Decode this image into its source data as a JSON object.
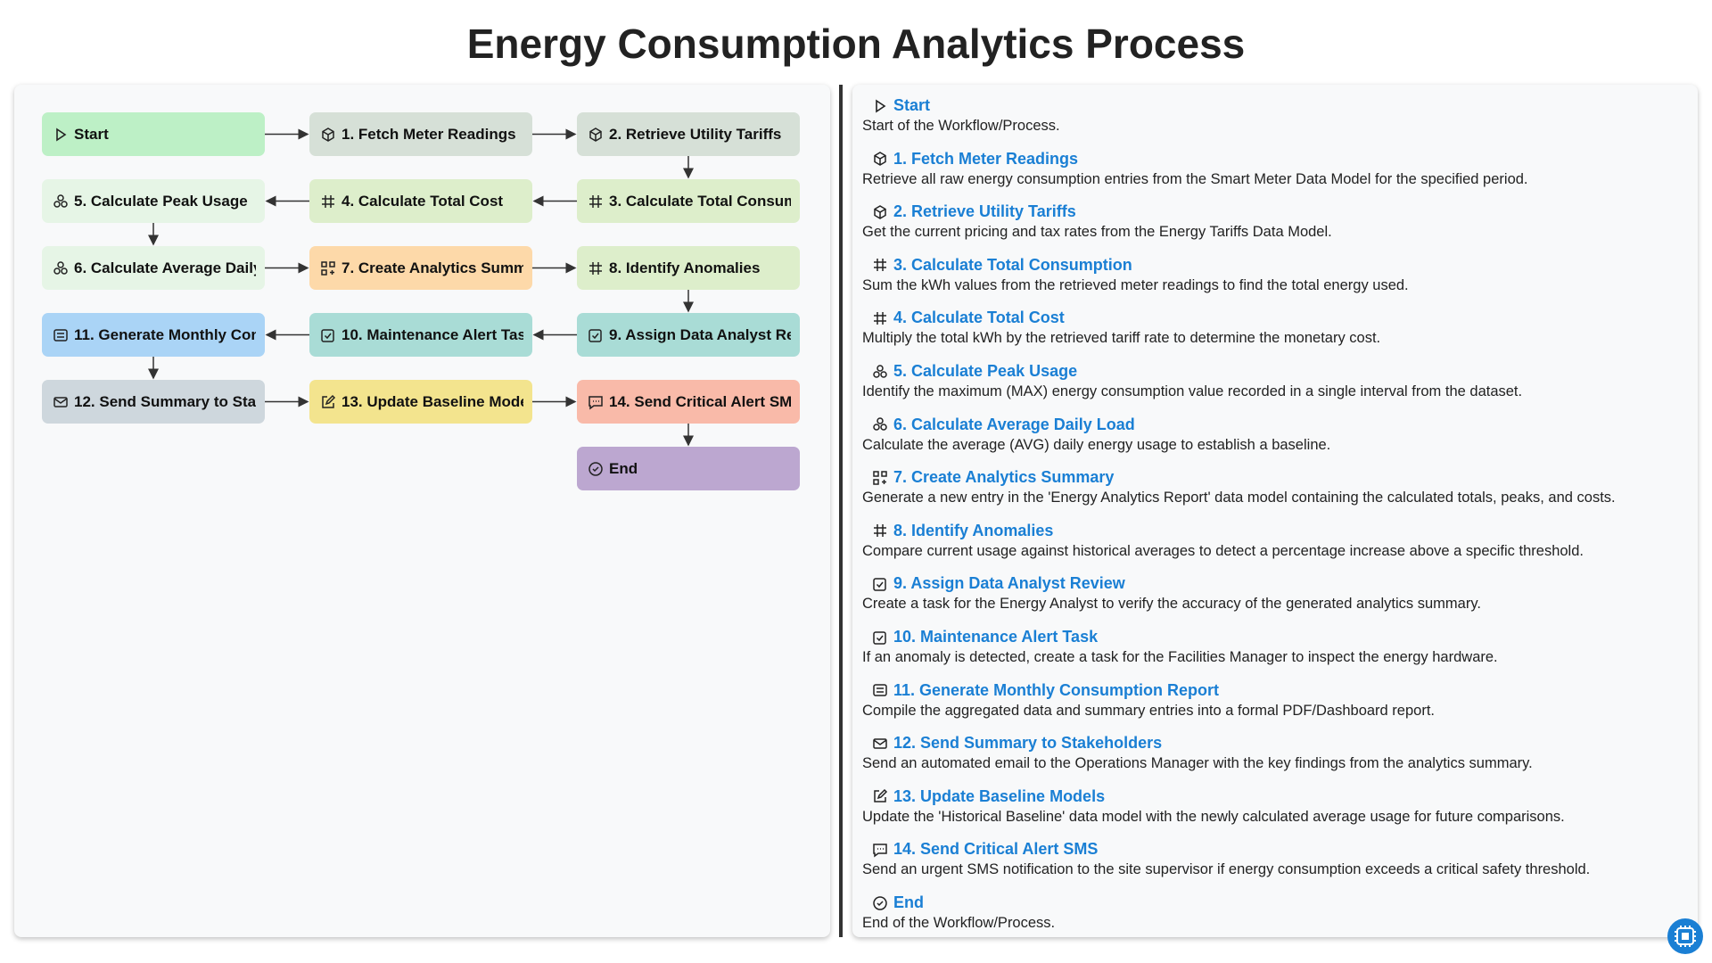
{
  "title": "Energy Consumption Analytics Process",
  "nodes": [
    {
      "label": "Start",
      "description": "Start of the Workflow/Process.",
      "color": "#bdf0c6"
    },
    {
      "label": "1. Fetch Meter Readings",
      "description": "Retrieve all raw energy consumption entries from the Smart Meter Data Model for the specified period.",
      "color": "#d6e0d7"
    },
    {
      "label": "2. Retrieve Utility Tariffs",
      "description": "Get the current pricing and tax rates from the Energy Tariffs Data Model.",
      "color": "#d6e0d7"
    },
    {
      "label": "3. Calculate Total Consumption",
      "description": "Sum the kWh values from the retrieved meter readings to find the total energy used.",
      "color": "#ddeecb"
    },
    {
      "label": "4. Calculate Total Cost",
      "description": "Multiply the total kWh by the retrieved tariff rate to determine the monetary cost.",
      "color": "#ddeecb"
    },
    {
      "label": "5. Calculate Peak Usage",
      "description": "Identify the maximum (MAX) energy consumption value recorded in a single interval from the dataset.",
      "color": "#e6f5e6"
    },
    {
      "label": "6. Calculate Average Daily Load",
      "description": "Calculate the average (AVG) daily energy usage to establish a baseline.",
      "color": "#e6f5e6"
    },
    {
      "label": "7. Create Analytics Summary",
      "description": "Generate a new entry in the 'Energy Analytics Report' data model containing the calculated totals, peaks, and costs.",
      "color": "#fdd9a9"
    },
    {
      "label": "8. Identify Anomalies",
      "description": "Compare current usage against historical averages to detect a percentage increase above a specific threshold.",
      "color": "#ddeecb"
    },
    {
      "label": "9. Assign Data Analyst Review",
      "description": "Create a task for the Energy Analyst to verify the accuracy of the generated analytics summary.",
      "color": "#a9dcd6"
    },
    {
      "label": "10. Maintenance Alert Task",
      "description": "If an anomaly is detected, create a task for the Facilities Manager to inspect the energy hardware.",
      "color": "#a9dcd6"
    },
    {
      "label": "11. Generate Monthly Consumption Report",
      "description": "Compile the aggregated data and summary entries into a formal PDF/Dashboard report.",
      "color": "#aad4f6"
    },
    {
      "label": "12. Send Summary to Stakeholders",
      "description": "Send an automated email to the Operations Manager with the key findings from the analytics summary.",
      "color": "#ced7dd"
    },
    {
      "label": "13. Update Baseline Models",
      "description": "Update the 'Historical Baseline' data model with the newly calculated average usage for future comparisons.",
      "color": "#f3e48e"
    },
    {
      "label": "14. Send Critical Alert SMS",
      "description": "Send an urgent SMS notification to the site supervisor if energy consumption exceeds a critical safety threshold.",
      "color": "#f9baa9"
    },
    {
      "label": "End",
      "description": "End of the Workflow/Process.",
      "color": "#bca7d0"
    }
  ]
}
